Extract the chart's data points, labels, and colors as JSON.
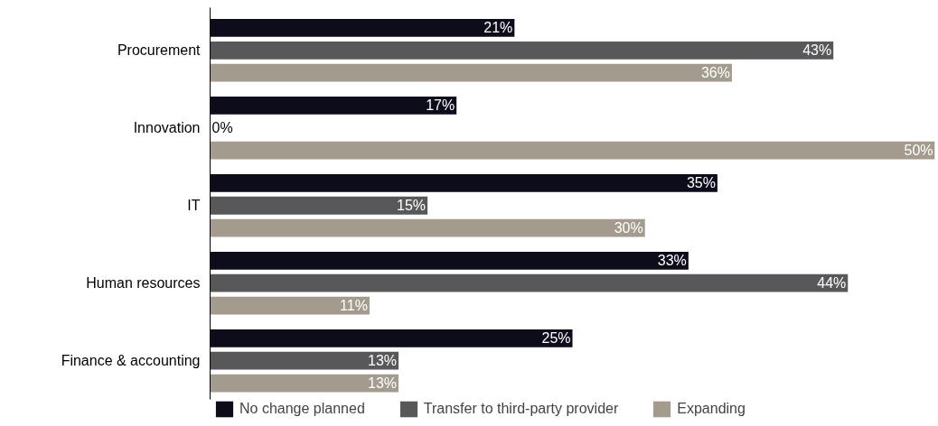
{
  "chart_data": {
    "type": "bar",
    "orientation": "horizontal",
    "categories": [
      "Procurement",
      "Innovation",
      "IT",
      "Human resources",
      "Finance & accounting"
    ],
    "series": [
      {
        "name": "No change planned",
        "color": "#0c0c1a",
        "values": [
          21,
          17,
          35,
          33,
          25
        ],
        "value_labels": [
          "21%",
          "17%",
          "35%",
          "33%",
          "25%"
        ]
      },
      {
        "name": "Transfer to third-party provider",
        "color": "#58585a",
        "values": [
          43,
          0,
          15,
          44,
          13
        ],
        "value_labels": [
          "43%",
          "0%",
          "15%",
          "44%",
          "13%"
        ]
      },
      {
        "name": "Expanding",
        "color": "#a39b8d",
        "values": [
          36,
          50,
          30,
          11,
          13
        ],
        "value_labels": [
          "36%",
          "50%",
          "30%",
          "11%",
          "13%"
        ]
      }
    ],
    "legend": "bottom",
    "grid": false
  }
}
